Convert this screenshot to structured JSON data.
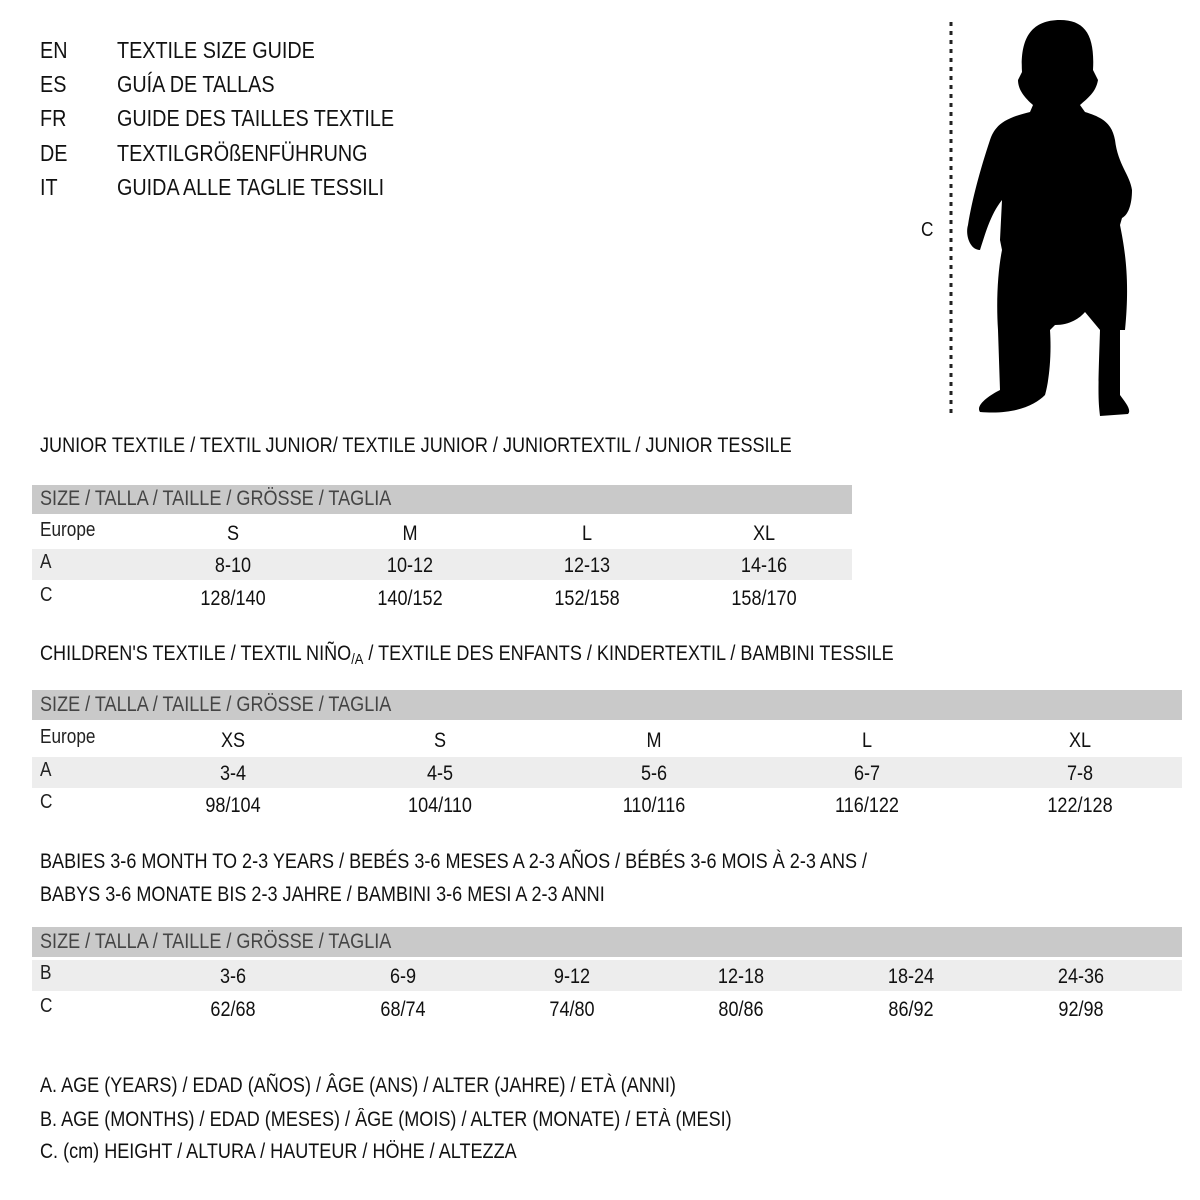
{
  "languages": [
    {
      "code": "EN",
      "title": "TEXTILE SIZE GUIDE"
    },
    {
      "code": "ES",
      "title": "GUÍA DE TALLAS"
    },
    {
      "code": "FR",
      "title": "GUIDE DES TAILLES TEXTILE"
    },
    {
      "code": "DE",
      "title": "TEXTILGRÖßENFÜHRUNG"
    },
    {
      "code": "IT",
      "title": "GUIDA ALLE TAGLIE TESSILI"
    }
  ],
  "figure": {
    "measure_label": "C",
    "icon": "child-silhouette-icon"
  },
  "size_header": "SIZE / TALLA / TAILLE / GRÖSSE / TAGLIA",
  "junior": {
    "title": "JUNIOR TEXTILE / TEXTIL JUNIOR/ TEXTILE JUNIOR / JUNIORTEXTIL / JUNIOR TESSILE",
    "rows": [
      {
        "label": "Europe",
        "values": [
          "S",
          "M",
          "L",
          "XL"
        ]
      },
      {
        "label": "A",
        "values": [
          "8-10",
          "10-12",
          "12-13",
          "14-16"
        ]
      },
      {
        "label": "C",
        "values": [
          "128/140",
          "140/152",
          "152/158",
          "158/170"
        ]
      }
    ]
  },
  "children": {
    "title": "CHILDREN'S TEXTILE / TEXTIL NIÑO",
    "title_sub": "/A",
    "title_rest": " / TEXTILE DES ENFANTS / KINDERTEXTIL / BAMBINI TESSILE",
    "rows": [
      {
        "label": "Europe",
        "values": [
          "XS",
          "S",
          "M",
          "L",
          "XL"
        ]
      },
      {
        "label": "A",
        "values": [
          "3-4",
          "4-5",
          "5-6",
          "6-7",
          "7-8"
        ]
      },
      {
        "label": "C",
        "values": [
          "98/104",
          "104/110",
          "110/116",
          "116/122",
          "122/128"
        ]
      }
    ]
  },
  "babies": {
    "title_line1": "BABIES 3-6 MONTH TO 2-3 YEARS / BEBÉS 3-6 MESES A 2-3 AÑOS / BÉBÉS 3-6 MOIS À 2-3 ANS /",
    "title_line2": "BABYS 3-6 MONATE BIS 2-3 JAHRE / BAMBINI 3-6 MESI A 2-3 ANNI",
    "rows": [
      {
        "label": "B",
        "values": [
          "3-6",
          "6-9",
          "9-12",
          "12-18",
          "18-24",
          "24-36"
        ]
      },
      {
        "label": "C",
        "values": [
          "62/68",
          "68/74",
          "74/80",
          "80/86",
          "86/92",
          "92/98"
        ]
      }
    ]
  },
  "legend": [
    "A. AGE (YEARS) / EDAD (AÑOS) / ÂGE (ANS) / ALTER (JAHRE) / ETÀ (ANNI)",
    "B. AGE (MONTHS) / EDAD (MESES) / ÂGE (MOIS) / ALTER (MONATE) / ETÀ (MESI)",
    "C. (cm) HEIGHT / ALTURA / HAUTEUR / HÖHE / ALTEZZA"
  ],
  "colors": {
    "header_bar": "#c9c9c9",
    "alt_row": "#ededed",
    "silhouette": "#000000"
  }
}
